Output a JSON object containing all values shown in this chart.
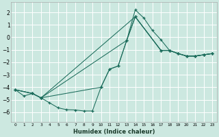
{
  "xlabel": "Humidex (Indice chaleur)",
  "bg_color": "#cce8e0",
  "grid_color": "#ffffff",
  "line_color": "#1a6b5a",
  "xlim": [
    -0.5,
    23.5
  ],
  "ylim": [
    -6.8,
    2.8
  ],
  "xticks": [
    0,
    1,
    2,
    3,
    4,
    5,
    6,
    7,
    8,
    9,
    10,
    11,
    12,
    13,
    14,
    15,
    16,
    17,
    18,
    19,
    20,
    21,
    22,
    23
  ],
  "yticks": [
    -6,
    -5,
    -4,
    -3,
    -2,
    -1,
    0,
    1,
    2
  ],
  "line1_x": [
    0,
    1,
    2,
    3,
    4,
    5,
    6,
    7,
    8,
    9,
    10,
    11,
    12,
    13,
    14,
    15,
    16,
    17,
    18,
    19,
    20,
    21,
    22,
    23
  ],
  "line1_y": [
    -4.2,
    -4.7,
    -4.5,
    -4.85,
    -5.25,
    -5.65,
    -5.8,
    -5.82,
    -5.9,
    -5.9,
    -4.0,
    -2.55,
    -2.3,
    -0.25,
    2.2,
    1.55,
    0.55,
    -0.2,
    -1.05,
    -1.3,
    -1.5,
    -1.5,
    -1.4,
    -1.3
  ],
  "line2_x": [
    0,
    2,
    3,
    10,
    11,
    12,
    13,
    14,
    17,
    18,
    19,
    20,
    21,
    22,
    23
  ],
  "line2_y": [
    -4.2,
    -4.5,
    -4.85,
    -4.0,
    -2.55,
    -2.3,
    -0.25,
    1.65,
    -1.05,
    -1.05,
    -1.3,
    -1.5,
    -1.5,
    -1.4,
    -1.3
  ],
  "line3_x": [
    0,
    2,
    3,
    13,
    14,
    17,
    18,
    19,
    20,
    21,
    22,
    23
  ],
  "line3_y": [
    -4.2,
    -4.5,
    -4.85,
    -0.25,
    1.65,
    -1.05,
    -1.05,
    -1.3,
    -1.5,
    -1.5,
    -1.4,
    -1.3
  ],
  "line4_x": [
    0,
    2,
    3,
    14,
    17,
    18,
    19,
    20,
    21,
    22,
    23
  ],
  "line4_y": [
    -4.2,
    -4.5,
    -4.85,
    1.65,
    -1.05,
    -1.05,
    -1.3,
    -1.5,
    -1.5,
    -1.4,
    -1.3
  ]
}
